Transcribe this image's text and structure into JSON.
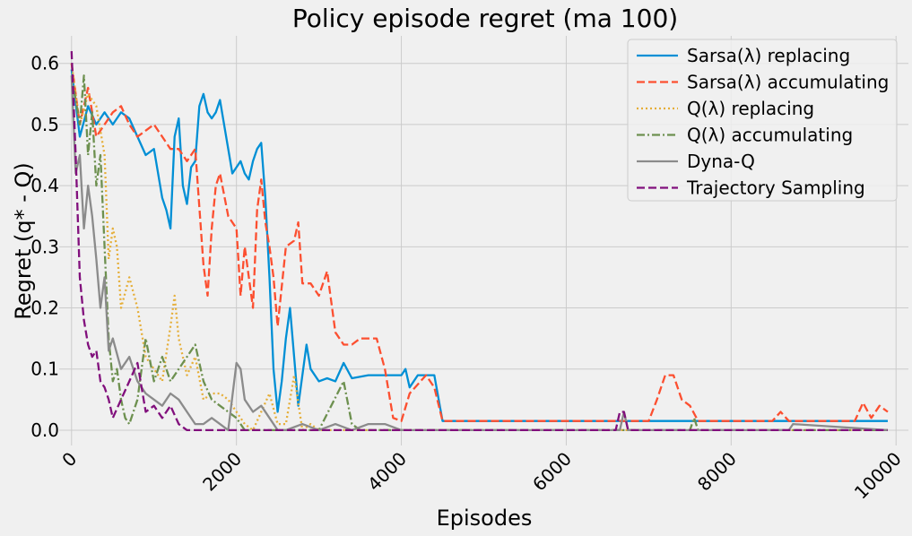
{
  "chart_data": {
    "type": "line",
    "title": "Policy episode regret (ma 100)",
    "xlabel": "Episodes",
    "ylabel": "Regret (q* - Q)",
    "xlim": [
      -150,
      10150
    ],
    "ylim": [
      -0.025,
      0.645
    ],
    "xticks": [
      0,
      2000,
      4000,
      6000,
      8000,
      10000
    ],
    "xtick_labels": [
      "0",
      "2000",
      "4000",
      "6000",
      "8000",
      "10000"
    ],
    "yticks": [
      0.0,
      0.1,
      0.2,
      0.3,
      0.4,
      0.5,
      0.6
    ],
    "ytick_labels": [
      "0.0",
      "0.1",
      "0.2",
      "0.3",
      "0.4",
      "0.5",
      "0.6"
    ],
    "grid": true,
    "legend_position": "top-right",
    "series": [
      {
        "name": "Sarsa(λ) replacing",
        "color": "#008fd5",
        "dash": "solid",
        "x": [
          0,
          100,
          200,
          300,
          400,
          500,
          600,
          700,
          800,
          900,
          1000,
          1100,
          1150,
          1200,
          1250,
          1300,
          1350,
          1400,
          1450,
          1500,
          1550,
          1600,
          1650,
          1700,
          1750,
          1800,
          1850,
          1900,
          1950,
          2000,
          2050,
          2100,
          2150,
          2200,
          2250,
          2300,
          2350,
          2400,
          2450,
          2500,
          2550,
          2600,
          2650,
          2700,
          2750,
          2800,
          2850,
          2900,
          3000,
          3100,
          3200,
          3300,
          3400,
          3600,
          3800,
          4000,
          4050,
          4100,
          4200,
          4300,
          4400,
          4500,
          4600,
          5000,
          6000,
          7000,
          8000,
          9000,
          9900
        ],
        "values": [
          0.59,
          0.48,
          0.53,
          0.5,
          0.52,
          0.5,
          0.52,
          0.51,
          0.48,
          0.45,
          0.46,
          0.38,
          0.36,
          0.33,
          0.48,
          0.51,
          0.4,
          0.37,
          0.43,
          0.44,
          0.53,
          0.55,
          0.52,
          0.51,
          0.52,
          0.54,
          0.5,
          0.46,
          0.42,
          0.43,
          0.44,
          0.42,
          0.41,
          0.44,
          0.46,
          0.47,
          0.38,
          0.25,
          0.1,
          0.03,
          0.08,
          0.15,
          0.2,
          0.12,
          0.04,
          0.09,
          0.14,
          0.1,
          0.08,
          0.085,
          0.08,
          0.11,
          0.085,
          0.09,
          0.09,
          0.09,
          0.1,
          0.07,
          0.09,
          0.09,
          0.09,
          0.015,
          0.015,
          0.015,
          0.015,
          0.015,
          0.015,
          0.015,
          0.015
        ]
      },
      {
        "name": "Sarsa(λ) accumulating",
        "color": "#fc4f30",
        "dash": "dashed",
        "x": [
          0,
          100,
          200,
          300,
          400,
          500,
          600,
          700,
          800,
          900,
          1000,
          1100,
          1200,
          1300,
          1400,
          1500,
          1600,
          1650,
          1700,
          1750,
          1800,
          1900,
          2000,
          2050,
          2100,
          2150,
          2200,
          2250,
          2300,
          2350,
          2400,
          2450,
          2500,
          2600,
          2700,
          2750,
          2800,
          2900,
          3000,
          3100,
          3200,
          3300,
          3400,
          3500,
          3700,
          3800,
          3900,
          4000,
          4100,
          4300,
          4400,
          4500,
          4600,
          7000,
          7100,
          7200,
          7300,
          7400,
          7500,
          7600,
          8500,
          8600,
          8700,
          9500,
          9600,
          9700,
          9800,
          9900
        ],
        "values": [
          0.6,
          0.5,
          0.56,
          0.48,
          0.5,
          0.52,
          0.53,
          0.5,
          0.48,
          0.49,
          0.5,
          0.48,
          0.46,
          0.46,
          0.44,
          0.46,
          0.27,
          0.22,
          0.33,
          0.4,
          0.42,
          0.35,
          0.33,
          0.22,
          0.3,
          0.25,
          0.2,
          0.36,
          0.41,
          0.34,
          0.3,
          0.25,
          0.17,
          0.3,
          0.31,
          0.34,
          0.24,
          0.24,
          0.22,
          0.26,
          0.16,
          0.14,
          0.14,
          0.15,
          0.15,
          0.1,
          0.02,
          0.015,
          0.06,
          0.09,
          0.07,
          0.015,
          0.015,
          0.015,
          0.05,
          0.09,
          0.09,
          0.05,
          0.04,
          0.015,
          0.015,
          0.03,
          0.015,
          0.015,
          0.045,
          0.02,
          0.04,
          0.03
        ]
      },
      {
        "name": "Q(λ) replacing",
        "color": "#e5ae38",
        "dash": "dotted",
        "x": [
          0,
          100,
          200,
          300,
          400,
          450,
          500,
          550,
          600,
          700,
          800,
          900,
          1000,
          1100,
          1200,
          1250,
          1300,
          1400,
          1500,
          1600,
          1700,
          1800,
          1900,
          2000,
          2100,
          2200,
          2300,
          2400,
          2500,
          2600,
          2700,
          2800,
          2900,
          3000,
          3200,
          4000,
          6000,
          8000,
          9900
        ],
        "values": [
          0.6,
          0.5,
          0.55,
          0.53,
          0.45,
          0.28,
          0.33,
          0.3,
          0.2,
          0.25,
          0.2,
          0.12,
          0.1,
          0.08,
          0.17,
          0.22,
          0.15,
          0.09,
          0.12,
          0.05,
          0.06,
          0.06,
          0.05,
          0.03,
          0.01,
          0.0,
          0.03,
          0.06,
          0.01,
          0.01,
          0.09,
          0.0,
          0.01,
          0.0,
          0.0,
          0.0,
          0.0,
          0.0,
          0.0
        ]
      },
      {
        "name": "Q(λ) accumulating",
        "color": "#6d904f",
        "dash": "dashdot",
        "x": [
          0,
          100,
          150,
          200,
          250,
          300,
          350,
          400,
          450,
          500,
          550,
          600,
          650,
          700,
          800,
          900,
          1000,
          1100,
          1200,
          1300,
          1400,
          1500,
          1600,
          1700,
          1800,
          1900,
          2000,
          2100,
          2200,
          2300,
          2500,
          3000,
          3300,
          3400,
          3500,
          4000,
          6000,
          7500,
          7550,
          7600,
          8000,
          9900
        ],
        "values": [
          0.58,
          0.5,
          0.58,
          0.45,
          0.52,
          0.4,
          0.45,
          0.3,
          0.15,
          0.08,
          0.1,
          0.05,
          0.02,
          0.01,
          0.05,
          0.15,
          0.08,
          0.12,
          0.08,
          0.1,
          0.12,
          0.14,
          0.08,
          0.05,
          0.04,
          0.03,
          0.02,
          0.0,
          0.0,
          0.0,
          0.0,
          0.0,
          0.08,
          0.01,
          0.0,
          0.0,
          0.0,
          0.0,
          0.02,
          0.0,
          0.0,
          0.0
        ]
      },
      {
        "name": "Dyna-Q",
        "color": "#8b8b8b",
        "dash": "solid",
        "x": [
          0,
          50,
          100,
          150,
          200,
          250,
          300,
          350,
          400,
          450,
          500,
          600,
          700,
          800,
          900,
          1000,
          1100,
          1200,
          1300,
          1400,
          1500,
          1600,
          1700,
          1800,
          1900,
          2000,
          2050,
          2100,
          2200,
          2300,
          2400,
          2500,
          2600,
          2800,
          3000,
          3200,
          3400,
          3600,
          3800,
          4000,
          4200,
          6000,
          6650,
          6700,
          6750,
          8000,
          8700,
          8750,
          9900
        ],
        "values": [
          0.58,
          0.42,
          0.45,
          0.33,
          0.4,
          0.35,
          0.28,
          0.2,
          0.25,
          0.13,
          0.15,
          0.1,
          0.12,
          0.08,
          0.06,
          0.05,
          0.04,
          0.06,
          0.05,
          0.03,
          0.01,
          0.01,
          0.02,
          0.01,
          0.0,
          0.11,
          0.1,
          0.05,
          0.03,
          0.04,
          0.02,
          0.0,
          0.0,
          0.01,
          0.0,
          0.01,
          0.0,
          0.01,
          0.01,
          0.0,
          0.0,
          0.0,
          0.0,
          0.03,
          0.0,
          0.0,
          0.0,
          0.01,
          0.0
        ]
      },
      {
        "name": "Trajectory Sampling",
        "color": "#810f7c",
        "dash": "dashed",
        "x": [
          0,
          50,
          100,
          150,
          200,
          250,
          300,
          350,
          400,
          450,
          500,
          600,
          700,
          800,
          900,
          1000,
          1100,
          1200,
          1300,
          1400,
          1500,
          1600,
          1700,
          1800,
          2000,
          2500,
          4000,
          6000,
          6600,
          6650,
          6700,
          6750,
          8000,
          9900
        ],
        "values": [
          0.62,
          0.45,
          0.25,
          0.18,
          0.14,
          0.12,
          0.13,
          0.08,
          0.07,
          0.05,
          0.02,
          0.05,
          0.08,
          0.11,
          0.03,
          0.04,
          0.02,
          0.04,
          0.01,
          0.0,
          0.0,
          0.0,
          0.0,
          0.0,
          0.0,
          0.0,
          0.0,
          0.0,
          0.0,
          0.03,
          0.03,
          0.0,
          0.0,
          0.0
        ]
      }
    ]
  }
}
